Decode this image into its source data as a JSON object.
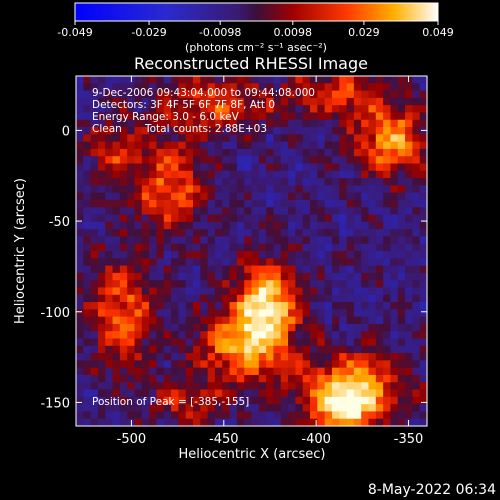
{
  "chart_data": {
    "type": "heatmap",
    "title": "Reconstructed RHESSI Image",
    "xlabel": "Heliocentric X (arcsec)",
    "ylabel": "Heliocentric Y (arcsec)",
    "xlim": [
      -530,
      -340
    ],
    "ylim": [
      -163,
      30
    ],
    "x_ticks": [
      "-500",
      "-450",
      "-400",
      "-350"
    ],
    "x_tick_values": [
      -500,
      -450,
      -400,
      -350
    ],
    "y_ticks": [
      "0",
      "-50",
      "-100",
      "-150"
    ],
    "y_tick_values": [
      0,
      -50,
      -100,
      -150
    ],
    "colorbar": {
      "min": -0.049,
      "max": 0.049,
      "ticks": [
        "-0.049",
        "-0.029",
        "-0.0098",
        "0.0098",
        "0.029",
        "0.049"
      ],
      "tick_values": [
        -0.049,
        -0.029,
        -0.0098,
        0.0098,
        0.029,
        0.049
      ],
      "unit_label": "(photons cm⁻² s⁻¹ asec⁻²)"
    },
    "annotations": {
      "time_range": "9-Dec-2006 09:43:04.000 to 09:44:08.000",
      "detectors": "Detectors: 3F 4F 5F 6F 7F 8F, Att 0",
      "energy_range": "Energy Range: 3.0 - 6.0 keV",
      "clean": "Clean",
      "total_counts": "Total counts: 2.88E+03",
      "peak": "Position of Peak = [-385,-155]"
    },
    "sources": [
      {
        "x": -427,
        "y": -95,
        "amp": 1.0,
        "sx": 12,
        "sy": 16
      },
      {
        "x": -440,
        "y": -120,
        "amp": 0.75,
        "sx": 18,
        "sy": 14
      },
      {
        "x": -380,
        "y": -140,
        "amp": 0.85,
        "sx": 20,
        "sy": 12
      },
      {
        "x": -360,
        "y": -5,
        "amp": 0.8,
        "sx": 14,
        "sy": 14
      },
      {
        "x": -480,
        "y": -30,
        "amp": 0.65,
        "sx": 14,
        "sy": 18
      },
      {
        "x": -505,
        "y": -100,
        "amp": 0.65,
        "sx": 12,
        "sy": 22
      },
      {
        "x": -455,
        "y": 15,
        "amp": 0.55,
        "sx": 22,
        "sy": 10
      },
      {
        "x": -385,
        "y": -155,
        "amp": 0.9,
        "sx": 12,
        "sy": 8
      },
      {
        "x": -510,
        "y": -10,
        "amp": 0.45,
        "sx": 10,
        "sy": 12
      },
      {
        "x": -390,
        "y": 20,
        "amp": 0.55,
        "sx": 18,
        "sy": 8
      },
      {
        "x": -470,
        "y": -150,
        "amp": 0.4,
        "sx": 14,
        "sy": 8
      }
    ]
  },
  "footer": {
    "timestamp": "8-May-2022 06:34"
  }
}
